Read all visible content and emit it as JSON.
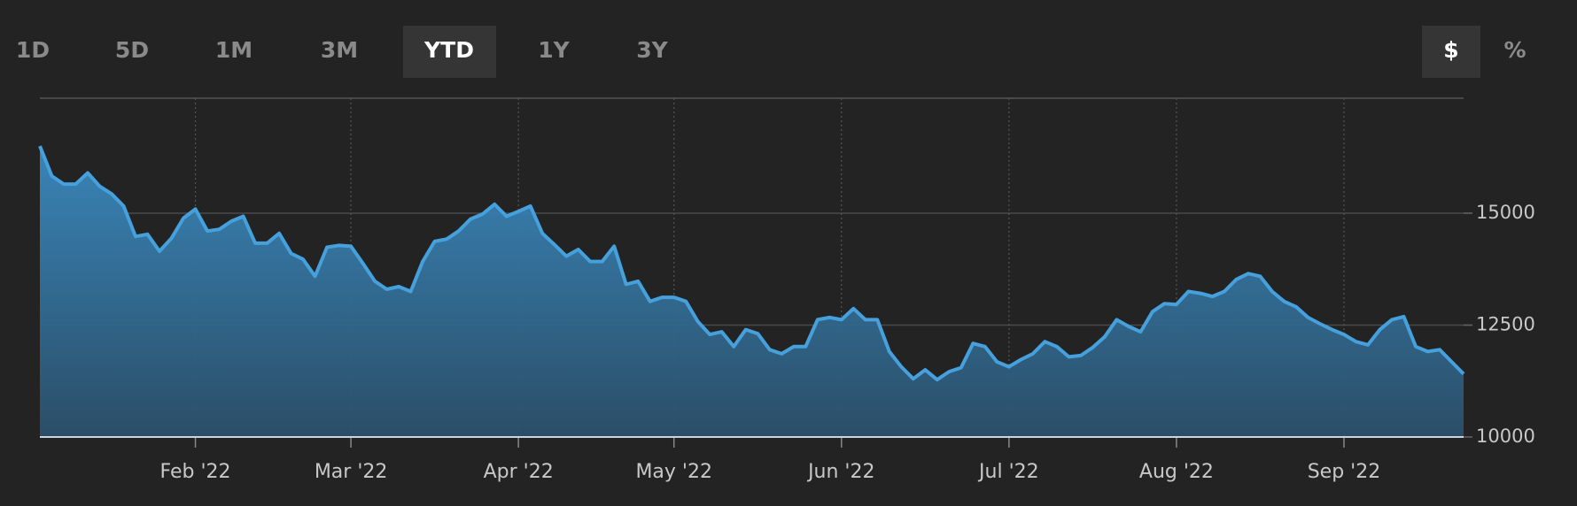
{
  "controls": {
    "ranges": [
      {
        "label": "1D",
        "selected": false
      },
      {
        "label": "5D",
        "selected": false
      },
      {
        "label": "1M",
        "selected": false
      },
      {
        "label": "3M",
        "selected": false
      },
      {
        "label": "YTD",
        "selected": true
      },
      {
        "label": "1Y",
        "selected": false
      },
      {
        "label": "3Y",
        "selected": false
      }
    ],
    "units": [
      {
        "label": "$",
        "selected": true
      },
      {
        "label": "%",
        "selected": false
      }
    ]
  },
  "chart_data": {
    "type": "area",
    "color": "#45a0dc",
    "grid": true,
    "categories": [
      null,
      null,
      null,
      null,
      null,
      null,
      null,
      null,
      null,
      null,
      null,
      null,
      null,
      "Feb '22",
      null,
      null,
      null,
      null,
      null,
      null,
      null,
      null,
      null,
      null,
      null,
      null,
      "Mar '22",
      null,
      null,
      null,
      null,
      null,
      null,
      null,
      null,
      null,
      null,
      null,
      null,
      null,
      "Apr '22",
      null,
      null,
      null,
      null,
      null,
      null,
      null,
      null,
      null,
      null,
      null,
      null,
      "May '22",
      null,
      null,
      null,
      null,
      null,
      null,
      null,
      null,
      null,
      null,
      null,
      null,
      null,
      "Jun '22",
      null,
      null,
      null,
      null,
      null,
      null,
      null,
      null,
      null,
      null,
      null,
      null,
      null,
      "Jul '22",
      null,
      null,
      null,
      null,
      null,
      null,
      null,
      null,
      null,
      null,
      null,
      null,
      null,
      "Aug '22",
      null,
      null,
      null,
      null,
      null,
      null,
      null,
      null,
      null,
      null,
      null,
      null,
      null,
      "Sep '22",
      null,
      null,
      null,
      null,
      null,
      null,
      null,
      null,
      null,
      null
    ],
    "values": [
      16500,
      15830,
      15650,
      15650,
      15900,
      15600,
      15430,
      15160,
      14480,
      14530,
      14150,
      14440,
      14890,
      15090,
      14600,
      14640,
      14820,
      14930,
      14330,
      14330,
      14550,
      14100,
      13970,
      13590,
      14240,
      14280,
      14260,
      13880,
      13480,
      13300,
      13360,
      13250,
      13920,
      14370,
      14420,
      14600,
      14870,
      14980,
      15200,
      14930,
      15040,
      15160,
      14550,
      14300,
      14040,
      14190,
      13920,
      13920,
      14260,
      13410,
      13480,
      13030,
      13120,
      13120,
      13030,
      12580,
      12290,
      12350,
      12020,
      12400,
      12310,
      11950,
      11860,
      12020,
      12020,
      12620,
      12670,
      12620,
      12870,
      12620,
      12620,
      11910,
      11570,
      11300,
      11500,
      11280,
      11460,
      11550,
      12090,
      12020,
      11680,
      11570,
      11730,
      11860,
      12130,
      12020,
      11790,
      11820,
      12000,
      12240,
      12620,
      12470,
      12350,
      12800,
      12980,
      12960,
      13250,
      13210,
      13140,
      13250,
      13520,
      13650,
      13590,
      13250,
      13030,
      12910,
      12670,
      12530,
      12400,
      12290,
      12130,
      12060,
      12400,
      12620,
      12690,
      12020,
      11910,
      11950,
      11680,
      11410
    ],
    "ylim": [
      10000,
      17500
    ],
    "yticks": [
      10000,
      12500,
      15000
    ]
  }
}
